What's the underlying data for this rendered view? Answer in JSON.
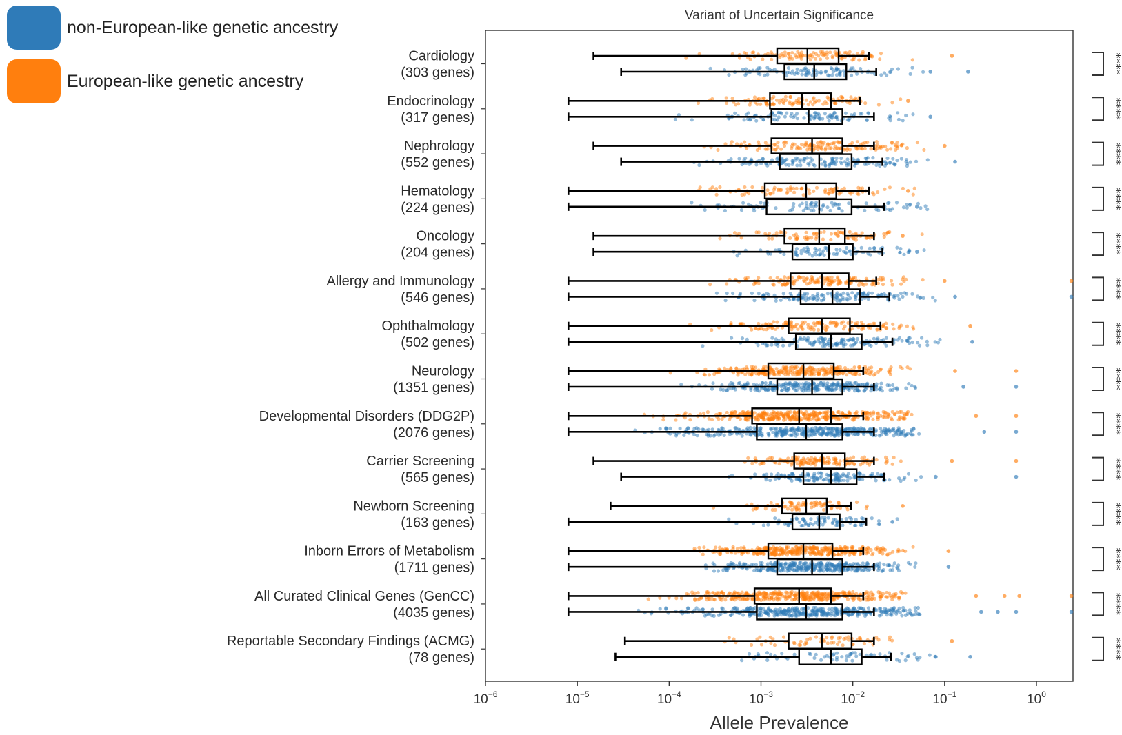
{
  "chart_data": {
    "type": "boxplot-strip",
    "title": "Variant of Uncertain Significance",
    "xlabel": "Allele Prevalence",
    "xscale": "log",
    "xlim": [
      1e-06,
      2.5
    ],
    "xticks": [
      {
        "value": 1e-06,
        "base": "10",
        "exp": "−6"
      },
      {
        "value": 1e-05,
        "base": "10",
        "exp": "−5"
      },
      {
        "value": 0.0001,
        "base": "10",
        "exp": "−4"
      },
      {
        "value": 0.001,
        "base": "10",
        "exp": "−3"
      },
      {
        "value": 0.01,
        "base": "10",
        "exp": "−2"
      },
      {
        "value": 0.1,
        "base": "10",
        "exp": "−1"
      },
      {
        "value": 1,
        "base": "10",
        "exp": "0"
      }
    ],
    "legend": {
      "placement": "top-left",
      "entries": [
        {
          "label": "non-European-like genetic ancestry",
          "color": "#2f7bb8"
        },
        {
          "label": "European-like genetic ancestry",
          "color": "#ff7f0e"
        }
      ]
    },
    "significance_label": "****",
    "series_colors": {
      "european": "#ff7f0e",
      "non_european": "#2f7bb8"
    },
    "categories": [
      {
        "name": "Cardiology",
        "genes": "(303 genes)",
        "european": {
          "wlo": 1.5e-05,
          "q1": 0.0015,
          "med": 0.0032,
          "q3": 0.007,
          "whi": 0.015
        },
        "non_european": {
          "wlo": 3e-05,
          "q1": 0.0018,
          "med": 0.0038,
          "q3": 0.0085,
          "whi": 0.018
        },
        "eu_outliers": [
          0.12
        ],
        "ne_outliers": [
          0.07,
          0.18
        ]
      },
      {
        "name": "Endocrinology",
        "genes": "(317 genes)",
        "european": {
          "wlo": 8e-06,
          "q1": 0.00125,
          "med": 0.0028,
          "q3": 0.0058,
          "whi": 0.012
        },
        "non_european": {
          "wlo": 8e-06,
          "q1": 0.0013,
          "med": 0.0033,
          "q3": 0.0077,
          "whi": 0.017
        },
        "eu_outliers": [
          0.04
        ],
        "ne_outliers": [
          0.07
        ]
      },
      {
        "name": "Nephrology",
        "genes": "(552 genes)",
        "european": {
          "wlo": 1.5e-05,
          "q1": 0.0013,
          "med": 0.0036,
          "q3": 0.0077,
          "whi": 0.017
        },
        "non_european": {
          "wlo": 3e-05,
          "q1": 0.0016,
          "med": 0.0043,
          "q3": 0.0097,
          "whi": 0.021
        },
        "eu_outliers": [
          0.1
        ],
        "ne_outliers": [
          0.13
        ]
      },
      {
        "name": "Hematology",
        "genes": "(224 genes)",
        "european": {
          "wlo": 8e-06,
          "q1": 0.0011,
          "med": 0.0031,
          "q3": 0.0066,
          "whi": 0.015
        },
        "non_european": {
          "wlo": 8e-06,
          "q1": 0.00115,
          "med": 0.0043,
          "q3": 0.0097,
          "whi": 0.022
        },
        "eu_outliers": [
          0.04
        ],
        "ne_outliers": [
          0.05
        ]
      },
      {
        "name": "Oncology",
        "genes": "(204 genes)",
        "european": {
          "wlo": 1.5e-05,
          "q1": 0.0018,
          "med": 0.0043,
          "q3": 0.0082,
          "whi": 0.017
        },
        "non_european": {
          "wlo": 1.5e-05,
          "q1": 0.0022,
          "med": 0.0055,
          "q3": 0.01,
          "whi": 0.021
        },
        "eu_outliers": [
          0.035
        ],
        "ne_outliers": [
          0.05
        ]
      },
      {
        "name": "Allergy and Immunology",
        "genes": "(546 genes)",
        "european": {
          "wlo": 8e-06,
          "q1": 0.0021,
          "med": 0.0046,
          "q3": 0.009,
          "whi": 0.018
        },
        "non_european": {
          "wlo": 8e-06,
          "q1": 0.0027,
          "med": 0.006,
          "q3": 0.012,
          "whi": 0.025
        },
        "eu_outliers": [
          0.1,
          2.4
        ],
        "ne_outliers": [
          0.13,
          2.4
        ]
      },
      {
        "name": "Ophthalmology",
        "genes": "(502 genes)",
        "european": {
          "wlo": 8e-06,
          "q1": 0.002,
          "med": 0.0046,
          "q3": 0.0093,
          "whi": 0.02
        },
        "non_european": {
          "wlo": 8e-06,
          "q1": 0.0024,
          "med": 0.0058,
          "q3": 0.0125,
          "whi": 0.027
        },
        "eu_outliers": [
          0.19
        ],
        "ne_outliers": [
          0.2
        ]
      },
      {
        "name": "Neurology",
        "genes": "(1351 genes)",
        "european": {
          "wlo": 8e-06,
          "q1": 0.0012,
          "med": 0.0029,
          "q3": 0.0062,
          "whi": 0.013
        },
        "non_european": {
          "wlo": 8e-06,
          "q1": 0.0015,
          "med": 0.0036,
          "q3": 0.0077,
          "whi": 0.017
        },
        "eu_outliers": [
          0.13,
          0.6
        ],
        "ne_outliers": [
          0.16,
          0.6
        ]
      },
      {
        "name": "Developmental Disorders (DDG2P)",
        "genes": "(2076 genes)",
        "european": {
          "wlo": 8e-06,
          "q1": 0.0008,
          "med": 0.0026,
          "q3": 0.0058,
          "whi": 0.013
        },
        "non_european": {
          "wlo": 8e-06,
          "q1": 0.0009,
          "med": 0.0031,
          "q3": 0.0077,
          "whi": 0.017
        },
        "eu_outliers": [
          0.22,
          0.6
        ],
        "ne_outliers": [
          0.27,
          0.6
        ]
      },
      {
        "name": "Carrier Screening",
        "genes": "(565 genes)",
        "european": {
          "wlo": 1.5e-05,
          "q1": 0.0023,
          "med": 0.0046,
          "q3": 0.0082,
          "whi": 0.017
        },
        "non_european": {
          "wlo": 3e-05,
          "q1": 0.0029,
          "med": 0.0058,
          "q3": 0.011,
          "whi": 0.022
        },
        "eu_outliers": [
          0.12,
          0.6
        ],
        "ne_outliers": [
          0.08,
          0.6
        ]
      },
      {
        "name": "Newborn Screening",
        "genes": "(163 genes)",
        "european": {
          "wlo": 2.3e-05,
          "q1": 0.0017,
          "med": 0.0031,
          "q3": 0.0052,
          "whi": 0.0095
        },
        "non_european": {
          "wlo": 8e-06,
          "q1": 0.0022,
          "med": 0.0043,
          "q3": 0.0072,
          "whi": 0.014
        },
        "eu_outliers": [
          0.035
        ],
        "ne_outliers": [
          0.027
        ]
      },
      {
        "name": "Inborn Errors of Metabolism",
        "genes": "(1711 genes)",
        "european": {
          "wlo": 8e-06,
          "q1": 0.0012,
          "med": 0.0029,
          "q3": 0.006,
          "whi": 0.013
        },
        "non_european": {
          "wlo": 8e-06,
          "q1": 0.0015,
          "med": 0.0036,
          "q3": 0.0077,
          "whi": 0.017
        },
        "eu_outliers": [
          0.11
        ],
        "ne_outliers": [
          0.11
        ]
      },
      {
        "name": "All Curated Clinical Genes (GenCC)",
        "genes": "(4035 genes)",
        "european": {
          "wlo": 8e-06,
          "q1": 0.00085,
          "med": 0.0026,
          "q3": 0.0058,
          "whi": 0.013
        },
        "non_european": {
          "wlo": 8e-06,
          "q1": 0.0009,
          "med": 0.0031,
          "q3": 0.0077,
          "whi": 0.017
        },
        "eu_outliers": [
          0.22,
          0.45,
          0.65,
          2.4
        ],
        "ne_outliers": [
          0.25,
          0.38,
          0.6,
          2.4
        ]
      },
      {
        "name": "Reportable Secondary Findings (ACMG)",
        "genes": "(78 genes)",
        "european": {
          "wlo": 3.3e-05,
          "q1": 0.002,
          "med": 0.0046,
          "q3": 0.0097,
          "whi": 0.017
        },
        "non_european": {
          "wlo": 2.6e-05,
          "q1": 0.0026,
          "med": 0.0058,
          "q3": 0.0125,
          "whi": 0.026
        },
        "eu_outliers": [
          0.12
        ],
        "ne_outliers": [
          0.08,
          0.19
        ]
      }
    ]
  }
}
